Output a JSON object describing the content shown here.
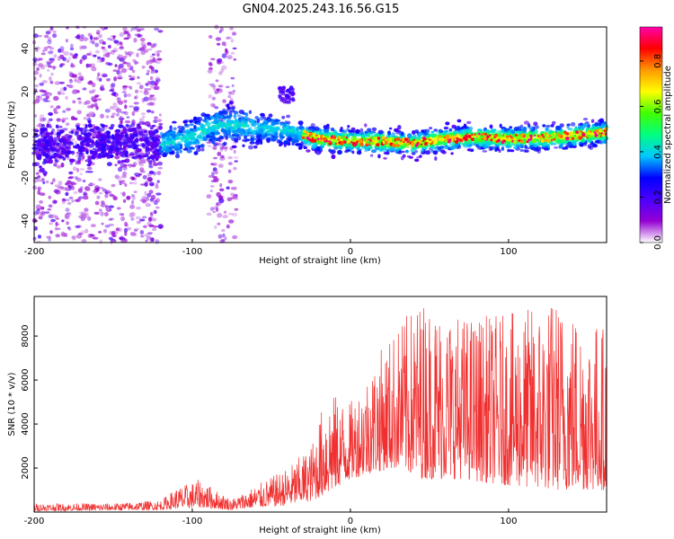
{
  "chart_data": [
    {
      "type": "heatmap",
      "title": "GN04.2025.243.16.56.G15",
      "xlabel": "Height of straight line (km)",
      "ylabel": "Frequency (Hz)",
      "xlim": [
        -200,
        162
      ],
      "ylim": [
        -50,
        50
      ],
      "x_ticks": [
        -200,
        -100,
        0,
        100
      ],
      "y_ticks": [
        -40,
        -20,
        0,
        20,
        40
      ],
      "colorbar": {
        "label": "Normalized spectral amplitude",
        "range": [
          0,
          0.95
        ],
        "ticks": [
          0.0,
          0.2,
          0.4,
          0.6,
          0.8
        ],
        "tick_labels": [
          "0.0",
          "0.2",
          "0.4",
          "0.6",
          "0.8"
        ],
        "colormap": [
          "#ffffff",
          "#9400d3",
          "#4b00ff",
          "#0000ff",
          "#00c8ff",
          "#00ff80",
          "#40ff00",
          "#ffff00",
          "#ff9900",
          "#ff0000",
          "#ff00aa"
        ]
      },
      "ridge_center_hz": [
        {
          "x": -200,
          "y": -5
        },
        {
          "x": -150,
          "y": -4
        },
        {
          "x": -120,
          "y": -4
        },
        {
          "x": -100,
          "y": -1
        },
        {
          "x": -90,
          "y": 3
        },
        {
          "x": -80,
          "y": 5
        },
        {
          "x": -60,
          "y": 3
        },
        {
          "x": -40,
          "y": 2
        },
        {
          "x": -20,
          "y": -2
        },
        {
          "x": 0,
          "y": -3
        },
        {
          "x": 20,
          "y": -3
        },
        {
          "x": 40,
          "y": -4
        },
        {
          "x": 60,
          "y": -2
        },
        {
          "x": 80,
          "y": -1
        },
        {
          "x": 100,
          "y": -2
        },
        {
          "x": 130,
          "y": -1
        },
        {
          "x": 162,
          "y": 1
        }
      ],
      "noise_regions": [
        {
          "x_range": [
            -200,
            -120
          ],
          "y_range": [
            -50,
            50
          ]
        },
        {
          "x_range": [
            -90,
            -72
          ],
          "y_range": [
            -50,
            50
          ]
        }
      ],
      "feature": {
        "x_range": [
          -45,
          -36
        ],
        "y_range": [
          15,
          22
        ]
      }
    },
    {
      "type": "line",
      "xlabel": "Height of straight line (km)",
      "ylabel": "SNR (10 * v/v)",
      "xlim": [
        -200,
        162
      ],
      "ylim": [
        0,
        9800
      ],
      "x_ticks": [
        -200,
        -100,
        0,
        100
      ],
      "y_ticks": [
        2000,
        4000,
        6000,
        8000
      ],
      "color": "#f03030",
      "series": [
        {
          "name": "SNR",
          "envelope": [
            {
              "x": -200,
              "low": 50,
              "high": 400
            },
            {
              "x": -150,
              "low": 80,
              "high": 400
            },
            {
              "x": -120,
              "low": 100,
              "high": 550
            },
            {
              "x": -110,
              "low": 150,
              "high": 1100
            },
            {
              "x": -95,
              "low": 200,
              "high": 1500
            },
            {
              "x": -85,
              "low": 150,
              "high": 1000
            },
            {
              "x": -75,
              "low": 100,
              "high": 600
            },
            {
              "x": -60,
              "low": 200,
              "high": 1200
            },
            {
              "x": -40,
              "low": 300,
              "high": 2000
            },
            {
              "x": -25,
              "low": 500,
              "high": 3000
            },
            {
              "x": -15,
              "low": 800,
              "high": 5500
            },
            {
              "x": 0,
              "low": 1500,
              "high": 5000
            },
            {
              "x": 15,
              "low": 1800,
              "high": 7000
            },
            {
              "x": 30,
              "low": 2000,
              "high": 8500
            },
            {
              "x": 45,
              "low": 1500,
              "high": 9800
            },
            {
              "x": 70,
              "low": 1500,
              "high": 9000
            },
            {
              "x": 100,
              "low": 1200,
              "high": 9000
            },
            {
              "x": 130,
              "low": 1000,
              "high": 9800
            },
            {
              "x": 162,
              "low": 1000,
              "high": 8500
            }
          ]
        }
      ]
    }
  ]
}
